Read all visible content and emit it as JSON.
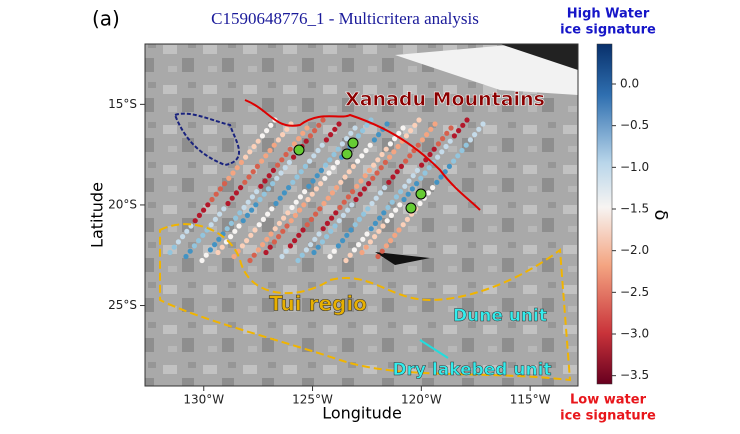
{
  "panel_label": "(a)",
  "title": "C1590648776_1 -  Multicritera analysis",
  "x_axis": {
    "label": "Longitude",
    "lim": [
      -132.7,
      -112.8
    ],
    "ticks": [
      {
        "value": -130,
        "label": "130°W"
      },
      {
        "value": -125,
        "label": "125°W"
      },
      {
        "value": -120,
        "label": "120°W"
      },
      {
        "value": -115,
        "label": "115°W"
      }
    ]
  },
  "y_axis": {
    "label": "Latitude",
    "lim": [
      -12.0,
      -29.0
    ],
    "ticks": [
      {
        "value": -15,
        "label": "15°S"
      },
      {
        "value": -20,
        "label": "20°S"
      },
      {
        "value": -25,
        "label": "25°S"
      }
    ]
  },
  "colorbar": {
    "label": "δ",
    "lim": [
      0.48,
      -3.6
    ],
    "ticks": [
      {
        "value": 0,
        "label": "0.0"
      },
      {
        "value": -0.5,
        "label": "−0.5"
      },
      {
        "value": -1,
        "label": "−1.0"
      },
      {
        "value": -1.5,
        "label": "−1.5"
      },
      {
        "value": -2,
        "label": "−2.0"
      },
      {
        "value": -2.5,
        "label": "−2.5"
      },
      {
        "value": -3,
        "label": "−3.0"
      },
      {
        "value": -3.5,
        "label": "−3.5"
      }
    ],
    "top_note": [
      "High Water",
      "ice signature"
    ],
    "bottom_note": [
      "Low water",
      "ice signature"
    ]
  },
  "annotations": {
    "xanadu": "Xanadu Mountains",
    "tui": "Tui regio",
    "dune": "Dune unit",
    "lakebed": "Dry lakebed unit"
  }
}
